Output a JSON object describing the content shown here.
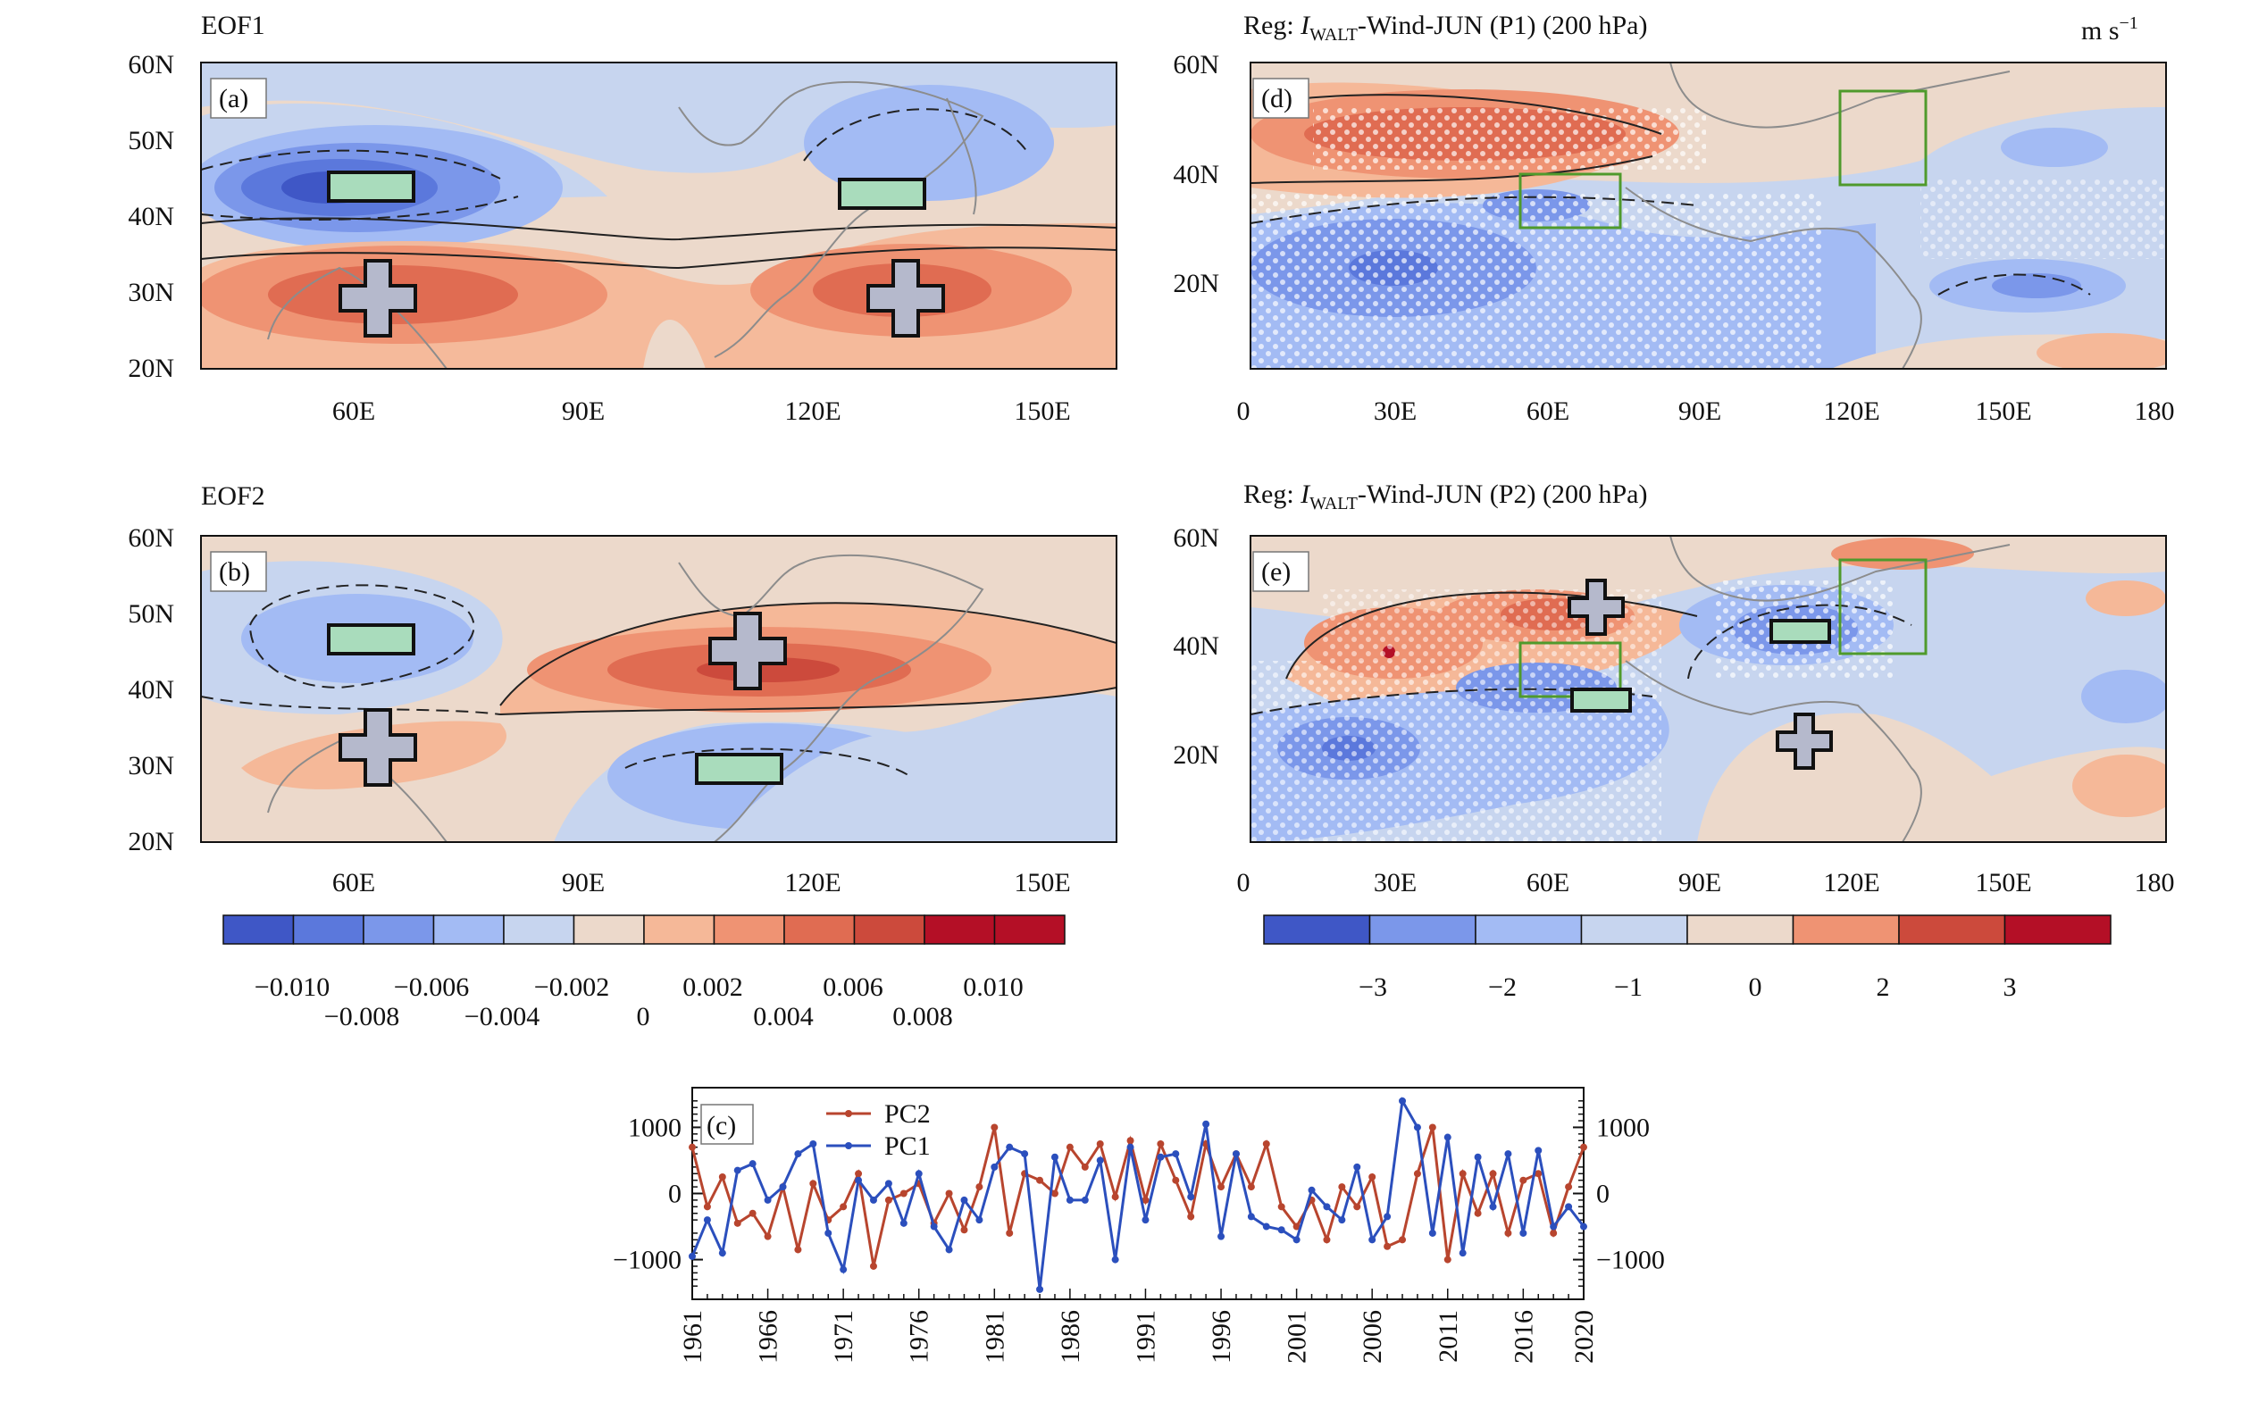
{
  "panels": {
    "a": {
      "title": "EOF1",
      "tag": "(a)"
    },
    "b": {
      "title": "EOF2",
      "tag": "(b)"
    },
    "c": {
      "tag": "(c)"
    },
    "d": {
      "title_prefix": "Reg: ",
      "title_I": "I",
      "title_sub": "WALT",
      "title_rest": "-Wind-JUN (P1) (200 hPa)",
      "tag": "(d)",
      "units": "m s",
      "units_sup": "−1"
    },
    "e": {
      "title_prefix": "Reg: ",
      "title_I": "I",
      "title_sub": "WALT",
      "title_rest": "-Wind-JUN (P2) (200 hPa)",
      "tag": "(e)"
    }
  },
  "axes": {
    "eof_lat_ticks": [
      "60N",
      "50N",
      "40N",
      "30N",
      "20N"
    ],
    "eof_lon_ticks": [
      "60E",
      "90E",
      "120E",
      "150E"
    ],
    "reg_lat_ticks": [
      "60N",
      "40N",
      "20N"
    ],
    "reg_lon_ticks": [
      "0",
      "30E",
      "60E",
      "90E",
      "120E",
      "150E",
      "180"
    ]
  },
  "colors": {
    "land_outline": "#8c8c8c",
    "positive_box": "#b5b9cc",
    "negative_box": "#a9dcbc",
    "green_box": "#4f9a2c",
    "pc1": "#2b4fbd",
    "pc2": "#b8452e",
    "levels": [
      "#3f57c6",
      "#5b78dc",
      "#7b97ea",
      "#a3bbf4",
      "#c7d5ef",
      "#ecd9cb",
      "#f5b898",
      "#ef9373",
      "#e06c52",
      "#cc4a3c",
      "#b40f26"
    ]
  },
  "colorbar_eof": {
    "labels_top": [
      "−0.010",
      "−0.006",
      "−0.002",
      "0.002",
      "0.006",
      "0.010"
    ],
    "labels_bottom": [
      "−0.008",
      "−0.004",
      "0",
      "0.004",
      "0.008"
    ]
  },
  "colorbar_reg": {
    "labels": [
      "−3",
      "−2",
      "−1",
      "0",
      "2",
      "3"
    ]
  },
  "chart_data": {
    "type": "line",
    "x": [
      1961,
      1962,
      1963,
      1964,
      1965,
      1966,
      1967,
      1968,
      1969,
      1970,
      1971,
      1972,
      1973,
      1974,
      1975,
      1976,
      1977,
      1978,
      1979,
      1980,
      1981,
      1982,
      1983,
      1984,
      1985,
      1986,
      1987,
      1988,
      1989,
      1990,
      1991,
      1992,
      1993,
      1994,
      1995,
      1996,
      1997,
      1998,
      1999,
      2000,
      2001,
      2002,
      2003,
      2004,
      2005,
      2006,
      2007,
      2008,
      2009,
      2010,
      2011,
      2012,
      2013,
      2014,
      2015,
      2016,
      2017,
      2018,
      2019,
      2020
    ],
    "series": [
      {
        "name": "PC2",
        "values": [
          700,
          -200,
          250,
          -450,
          -300,
          -650,
          100,
          -850,
          150,
          -400,
          -200,
          300,
          -1100,
          -100,
          0,
          150,
          -450,
          0,
          -550,
          100,
          1000,
          -600,
          300,
          200,
          0,
          700,
          400,
          750,
          -50,
          800,
          -100,
          750,
          200,
          -350,
          750,
          100,
          600,
          100,
          750,
          -200,
          -500,
          -100,
          -700,
          100,
          -200,
          250,
          -800,
          -700,
          300,
          1000,
          -1000,
          300,
          -300,
          300,
          -600,
          200,
          300,
          -600,
          100,
          700
        ]
      },
      {
        "name": "PC1",
        "values": [
          -950,
          -400,
          -900,
          350,
          450,
          -100,
          100,
          600,
          750,
          -600,
          -1150,
          200,
          -100,
          150,
          -450,
          300,
          -500,
          -850,
          -100,
          -400,
          400,
          700,
          600,
          -1450,
          550,
          -100,
          -100,
          500,
          -1000,
          700,
          -400,
          550,
          600,
          -50,
          1050,
          -650,
          600,
          -350,
          -500,
          -550,
          -700,
          50,
          -200,
          -400,
          400,
          -700,
          -350,
          1400,
          1000,
          -600,
          850,
          -900,
          550,
          -200,
          600,
          -600,
          650,
          -500,
          -200,
          -500
        ]
      }
    ],
    "x_ticks": [
      "1961",
      "1966",
      "1971",
      "1976",
      "1981",
      "1986",
      "1991",
      "1996",
      "2001",
      "2006",
      "2011",
      "2016",
      "2020"
    ],
    "y_ticks": [
      "1000",
      "0",
      "−1000"
    ],
    "ylim": [
      -1600,
      1600
    ],
    "legend": "top-left"
  }
}
